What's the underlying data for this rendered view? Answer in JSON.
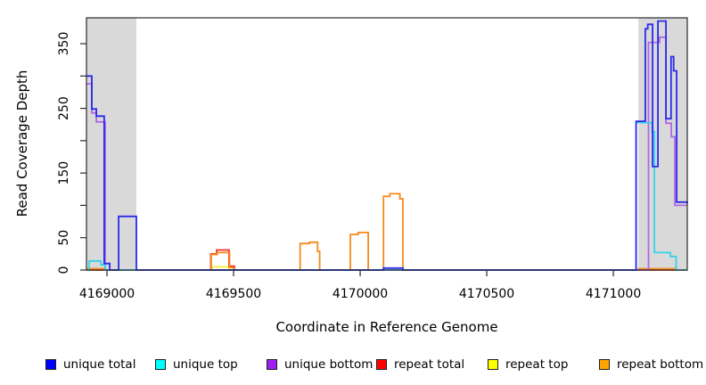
{
  "chart_data": {
    "type": "line",
    "title": "",
    "xlabel": "Coordinate in Reference Genome",
    "ylabel": "Read Coverage Depth",
    "x_domain": [
      4168919,
      4171292
    ],
    "y_domain": [
      0,
      390
    ],
    "x_ticks": [
      4169000,
      4169500,
      4170000,
      4170500,
      4171000
    ],
    "y_ticks": [
      0,
      50,
      100,
      150,
      200,
      250,
      300,
      350
    ],
    "y_tick_labels_shown": [
      0,
      50,
      150,
      250,
      350
    ],
    "grid": "off",
    "legend_position": "bottom",
    "shaded_regions": [
      {
        "name": "left-gray-region",
        "x1": 4168919,
        "x2": 4169116,
        "color": "#d9d9d9"
      },
      {
        "name": "right-gray-region",
        "x1": 4171099,
        "x2": 4171292,
        "color": "#d9d9d9"
      }
    ],
    "series": [
      {
        "name": "unique-total",
        "label": "unique total",
        "legend_color": "#0000ff",
        "line_color": "#2a2aee",
        "points": [
          [
            4168919,
            300
          ],
          [
            4168940,
            249
          ],
          [
            4168958,
            238
          ],
          [
            4168989,
            10
          ],
          [
            4169011,
            0
          ],
          [
            4169046,
            83
          ],
          [
            4169116,
            0
          ],
          [
            4170092,
            3
          ],
          [
            4170169,
            0
          ],
          [
            4171090,
            230
          ],
          [
            4171126,
            373
          ],
          [
            4171136,
            380
          ],
          [
            4171155,
            160
          ],
          [
            4171176,
            385
          ],
          [
            4171208,
            234
          ],
          [
            4171228,
            330
          ],
          [
            4171238,
            308
          ],
          [
            4171250,
            105
          ],
          [
            4171292,
            103
          ]
        ]
      },
      {
        "name": "unique-top",
        "label": "unique top",
        "legend_color": "#00ffff",
        "line_color": "#35d3e8",
        "points": [
          [
            4168919,
            0
          ],
          [
            4168930,
            14
          ],
          [
            4168976,
            8
          ],
          [
            4168993,
            0
          ],
          [
            4171090,
            228
          ],
          [
            4171153,
            214
          ],
          [
            4171162,
            27
          ],
          [
            4171225,
            21
          ],
          [
            4171248,
            0
          ],
          [
            4171292,
            0
          ]
        ]
      },
      {
        "name": "unique-bottom",
        "label": "unique bottom",
        "legend_color": "#a020f0",
        "line_color": "#b168e2",
        "points": [
          [
            4168919,
            288
          ],
          [
            4168940,
            243
          ],
          [
            4168958,
            229
          ],
          [
            4168993,
            0
          ],
          [
            4171139,
            352
          ],
          [
            4171183,
            360
          ],
          [
            4171208,
            227
          ],
          [
            4171229,
            206
          ],
          [
            4171243,
            100
          ],
          [
            4171292,
            100
          ]
        ]
      },
      {
        "name": "repeat-total",
        "label": "repeat total",
        "legend_color": "#ff0000",
        "line_color": "#e63227",
        "points": [
          [
            4168919,
            0
          ],
          [
            4169410,
            25
          ],
          [
            4169433,
            31
          ],
          [
            4169482,
            6
          ],
          [
            4169503,
            0
          ],
          [
            4171292,
            0
          ]
        ]
      },
      {
        "name": "repeat-top",
        "label": "repeat top",
        "legend_color": "#ffff00",
        "line_color": "#f5ef30",
        "points": [
          [
            4168919,
            0
          ],
          [
            4169413,
            5
          ],
          [
            4169482,
            0
          ],
          [
            4171292,
            0
          ]
        ]
      },
      {
        "name": "repeat-bottom",
        "label": "repeat bottom",
        "legend_color": "#ffa500",
        "line_color": "#f78a1d",
        "points": [
          [
            4168919,
            2
          ],
          [
            4168993,
            0
          ],
          [
            4169412,
            24
          ],
          [
            4169435,
            27
          ],
          [
            4169484,
            4
          ],
          [
            4169500,
            0
          ],
          [
            4169763,
            41
          ],
          [
            4169800,
            43
          ],
          [
            4169832,
            29
          ],
          [
            4169840,
            0
          ],
          [
            4169961,
            55
          ],
          [
            4169992,
            58
          ],
          [
            4170032,
            0
          ],
          [
            4170092,
            114
          ],
          [
            4170117,
            118
          ],
          [
            4170157,
            110
          ],
          [
            4170169,
            0
          ],
          [
            4171099,
            2
          ],
          [
            4171245,
            0
          ],
          [
            4171292,
            0
          ]
        ]
      }
    ]
  },
  "legend": {
    "items": [
      {
        "label": "unique total"
      },
      {
        "label": "unique top"
      },
      {
        "label": "unique bottom"
      },
      {
        "label": "repeat total"
      },
      {
        "label": "repeat top"
      },
      {
        "label": "repeat bottom"
      }
    ]
  }
}
